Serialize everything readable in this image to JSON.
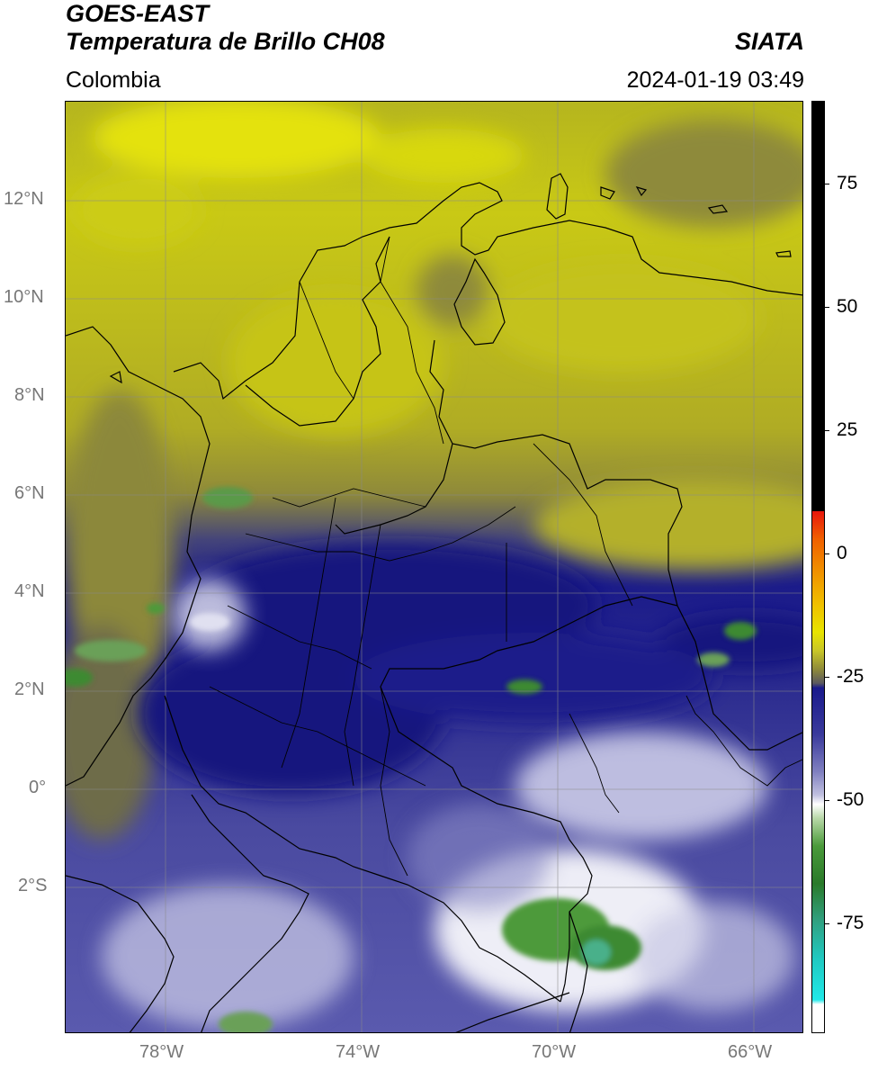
{
  "header": {
    "satellite": "GOES-EAST",
    "product": "Temperatura de Brillo CH08",
    "region": "Colombia",
    "agency": "SIATA",
    "datetime": "2024-01-19 03:49"
  },
  "map": {
    "lat_labels": [
      "12°N",
      "10°N",
      "8°N",
      "6°N",
      "4°N",
      "2°N",
      "0°",
      "2°S"
    ],
    "lon_labels": [
      "78°W",
      "74°W",
      "70°W",
      "66°W"
    ],
    "extent": {
      "lon_min": -80,
      "lon_max": -65,
      "lat_min": -5,
      "lat_max": 14
    }
  },
  "colorbar": {
    "unit_range": [
      -95,
      90
    ],
    "ticks": [
      "75",
      "50",
      "25",
      "0",
      "-25",
      "-50",
      "-75"
    ],
    "palette": {
      "warm_black": "#000000",
      "red": "#e8160c",
      "orange": "#f08a00",
      "yellow": "#e8e400",
      "olive": "#8e8a3a",
      "navy": "#1a1a8c",
      "lavender": "#b8b8dc",
      "white": "#ffffff",
      "green": "#3a8a2a",
      "cyan": "#20e0e0"
    }
  }
}
